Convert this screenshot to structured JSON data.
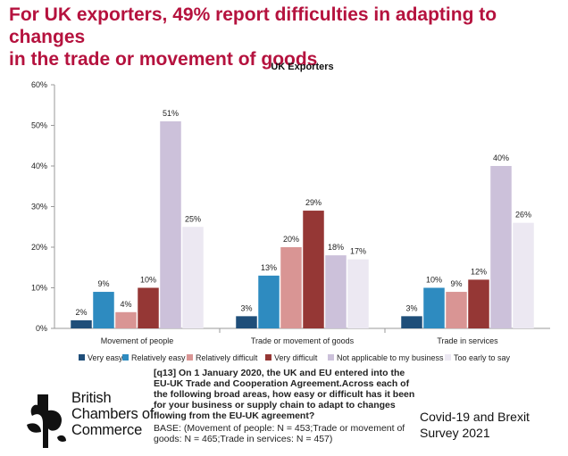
{
  "headline": {
    "line1": "For UK exporters, 49% report difficulties in adapting to changes",
    "line2": "in the trade or movement of goods"
  },
  "chart_data": {
    "type": "bar",
    "title": "UK Exporters",
    "xlabel": "",
    "ylabel": "",
    "ylim": [
      0,
      60
    ],
    "yticks": [
      "0%",
      "10%",
      "20%",
      "30%",
      "40%",
      "50%",
      "60%"
    ],
    "grid": false,
    "legend_position": "bottom",
    "categories": [
      "Movement of people",
      "Trade or movement of goods",
      "Trade in services"
    ],
    "series": [
      {
        "name": "Very easy",
        "color": "#1f4e79",
        "values": [
          2,
          3,
          3
        ],
        "labels": [
          "2%",
          "3%",
          "3%"
        ]
      },
      {
        "name": "Relatively easy",
        "color": "#2e8bc0",
        "values": [
          9,
          13,
          10
        ],
        "labels": [
          "9%",
          "13%",
          "10%"
        ]
      },
      {
        "name": "Relatively difficult",
        "color": "#d99594",
        "values": [
          4,
          20,
          9
        ],
        "labels": [
          "4%",
          "20%",
          "9%"
        ]
      },
      {
        "name": "Very difficult",
        "color": "#953735",
        "values": [
          10,
          29,
          12
        ],
        "labels": [
          "10%",
          "29%",
          "12%"
        ]
      },
      {
        "name": "Not applicable to my business",
        "color": "#ccc1da",
        "values": [
          51,
          18,
          40
        ],
        "labels": [
          "51%",
          "18%",
          "40%"
        ]
      },
      {
        "name": "Too early to say",
        "color": "#ece8f2",
        "values": [
          25,
          17,
          26
        ],
        "labels": [
          "25%",
          "17%",
          "26%"
        ]
      }
    ]
  },
  "question": {
    "text": "[q13] On 1 January 2020, the UK and EU entered into the EU-UK Trade and Cooperation Agreement.Across each of the following broad areas, how easy or difficult has it been for your business or supply chain to adapt to changes flowing from the EU-UK agreement?",
    "base": "BASE: (Movement of people: N = 453;Trade or movement of goods: N = 465;Trade in services: N = 457)"
  },
  "survey": {
    "line1": "Covid-19 and Brexit",
    "line2": "Survey 2021"
  },
  "logo": {
    "icon": "bcc-tree-icon",
    "line1": "British",
    "line2": "Chambers of",
    "line3": "Commerce"
  }
}
